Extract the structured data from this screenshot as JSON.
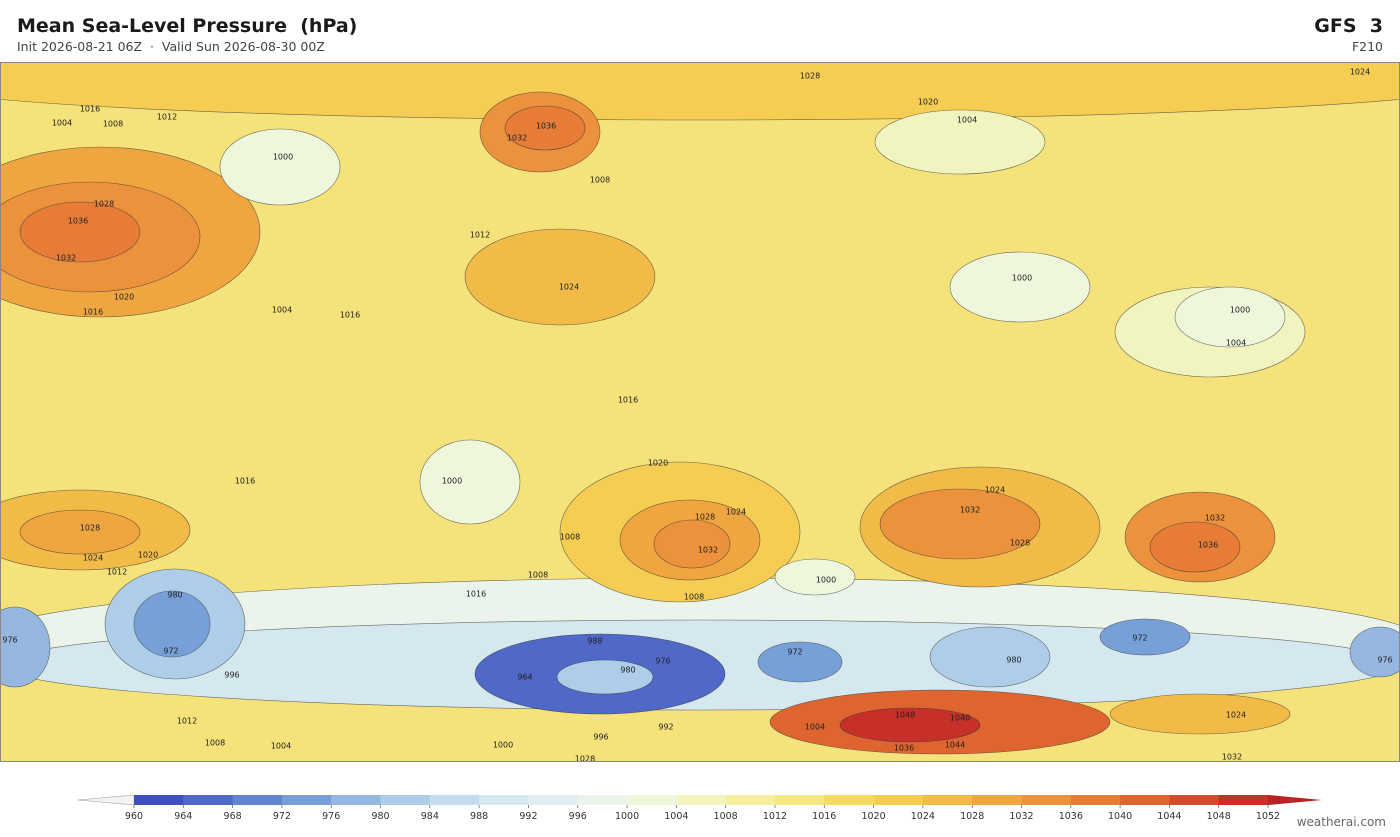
{
  "header": {
    "title": "Mean Sea-Level Pressure  (hPa)",
    "subtitle": "Init 2026-08-21 06Z  ·  Valid Sun 2026-08-30 00Z",
    "model": "GFS  3",
    "forecast_hour": "F210"
  },
  "map": {
    "base_color": "#f5e27a",
    "contour_labels": [
      1020,
      996,
      988,
      1028,
      1024,
      1016,
      1012,
      1004,
      1008,
      1032,
      1036,
      1036,
      1032,
      1028,
      1020,
      1016,
      1024,
      1004,
      1000,
      1012,
      1008,
      1016,
      1004,
      1000,
      1000,
      1004,
      1016,
      1016,
      1020,
      1000,
      1028,
      1032,
      1024,
      1024,
      1032,
      1028,
      1032,
      1036,
      1028,
      1024,
      1020,
      1012,
      1008,
      1008,
      1016,
      1000,
      1008,
      980,
      972,
      980,
      964,
      976,
      972,
      980,
      972,
      976,
      976,
      1040,
      1048,
      1044,
      1036,
      1032,
      1024,
      1004,
      1000,
      996,
      992,
      1028,
      1008,
      1004,
      1012
    ]
  },
  "colorbar": {
    "ticks": [
      960,
      964,
      968,
      972,
      976,
      980,
      984,
      988,
      992,
      996,
      1000,
      1004,
      1008,
      1012,
      1016,
      1020,
      1024,
      1028,
      1032,
      1036,
      1040,
      1044,
      1048,
      1052
    ],
    "colors": [
      "#3f4fbf",
      "#5068c8",
      "#6384d0",
      "#78a0d8",
      "#96b8e0",
      "#aecde8",
      "#c4dced",
      "#d6e8ef",
      "#e2eff0",
      "#eaf4ea",
      "#eef6dc",
      "#f2f4c0",
      "#f4f0a0",
      "#f5e87c",
      "#f5dc60",
      "#f4cd52",
      "#f2bb48",
      "#efa540",
      "#ec913c",
      "#e67c36",
      "#de6530",
      "#d24c2b",
      "#c63028"
    ],
    "under_color": "#f3f3f3",
    "over_color": "#b82424"
  },
  "credit": "weatherai.com"
}
